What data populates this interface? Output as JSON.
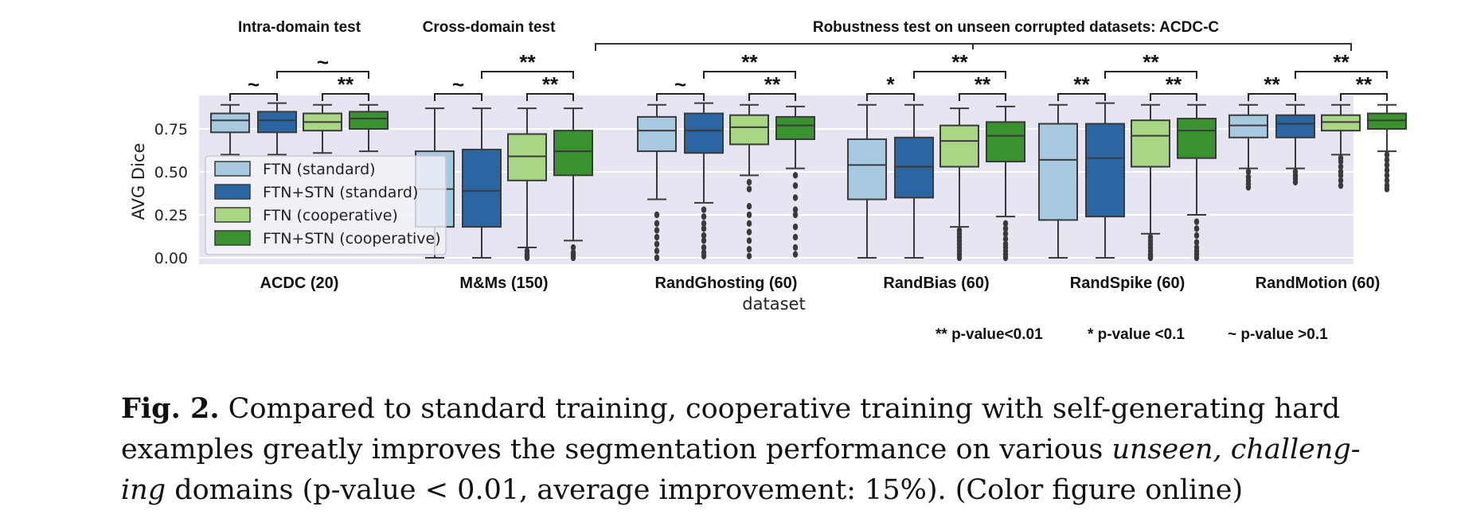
{
  "chart_data": {
    "type": "box",
    "xlabel": "dataset",
    "ylabel": "AVG Dice",
    "ylim": [
      0,
      0.9
    ],
    "yticks": [
      "0.00",
      "0.25",
      "0.50",
      "0.75"
    ],
    "grid": true,
    "legend_placement": "left",
    "colors": [
      "#a6c9e0",
      "#2b66a2",
      "#a9d684",
      "#3b9030"
    ],
    "series": [
      {
        "name": "FTN (standard)",
        "color": "#a6c9e0"
      },
      {
        "name": "FTN+STN (standard)",
        "color": "#2b66a2"
      },
      {
        "name": "FTN (cooperative)",
        "color": "#a9d684"
      },
      {
        "name": "FTN+STN (cooperative)",
        "color": "#3b9030"
      }
    ],
    "categories": [
      "ACDC (20)",
      "M&Ms (150)",
      "RandGhosting (60)",
      "RandBias (60)",
      "RandSpike (60)",
      "RandMotion (60)"
    ],
    "boxes": [
      [
        {
          "whislo": 0.6,
          "q1": 0.73,
          "med": 0.8,
          "q3": 0.84,
          "whishi": 0.89,
          "fliers": []
        },
        {
          "whislo": 0.6,
          "q1": 0.73,
          "med": 0.8,
          "q3": 0.85,
          "whishi": 0.9,
          "fliers": []
        },
        {
          "whislo": 0.61,
          "q1": 0.74,
          "med": 0.79,
          "q3": 0.84,
          "whishi": 0.89,
          "fliers": []
        },
        {
          "whislo": 0.62,
          "q1": 0.75,
          "med": 0.81,
          "q3": 0.85,
          "whishi": 0.89,
          "fliers": []
        }
      ],
      [
        {
          "whislo": 0.0,
          "q1": 0.18,
          "med": 0.4,
          "q3": 0.62,
          "whishi": 0.87,
          "fliers": []
        },
        {
          "whislo": 0.0,
          "q1": 0.18,
          "med": 0.39,
          "q3": 0.63,
          "whishi": 0.87,
          "fliers": []
        },
        {
          "whislo": 0.06,
          "q1": 0.45,
          "med": 0.59,
          "q3": 0.72,
          "whishi": 0.87,
          "fliers": [
            0.04,
            0.02,
            0.01,
            0.0
          ]
        },
        {
          "whislo": 0.1,
          "q1": 0.48,
          "med": 0.62,
          "q3": 0.74,
          "whishi": 0.87,
          "fliers": [
            0.06,
            0.03,
            0.02,
            0.01,
            0.0
          ]
        }
      ],
      [
        {
          "whislo": 0.34,
          "q1": 0.62,
          "med": 0.74,
          "q3": 0.82,
          "whishi": 0.89,
          "fliers": [
            0.25,
            0.2,
            0.16,
            0.12,
            0.08,
            0.04,
            0.0
          ]
        },
        {
          "whislo": 0.32,
          "q1": 0.61,
          "med": 0.74,
          "q3": 0.84,
          "whishi": 0.9,
          "fliers": [
            0.28,
            0.24,
            0.2,
            0.17,
            0.13,
            0.1,
            0.06,
            0.03,
            0.01
          ]
        },
        {
          "whislo": 0.48,
          "q1": 0.66,
          "med": 0.76,
          "q3": 0.83,
          "whishi": 0.89,
          "fliers": [
            0.44,
            0.4,
            0.3,
            0.25,
            0.2,
            0.15,
            0.1,
            0.05,
            0.01
          ]
        },
        {
          "whislo": 0.52,
          "q1": 0.69,
          "med": 0.77,
          "q3": 0.82,
          "whishi": 0.88,
          "fliers": [
            0.48,
            0.42,
            0.35,
            0.28,
            0.25,
            0.18,
            0.12,
            0.06,
            0.02
          ]
        }
      ],
      [
        {
          "whislo": 0.0,
          "q1": 0.34,
          "med": 0.54,
          "q3": 0.69,
          "whishi": 0.89,
          "fliers": []
        },
        {
          "whislo": 0.0,
          "q1": 0.35,
          "med": 0.53,
          "q3": 0.7,
          "whishi": 0.89,
          "fliers": []
        },
        {
          "whislo": 0.18,
          "q1": 0.53,
          "med": 0.68,
          "q3": 0.77,
          "whishi": 0.87,
          "fliers": [
            0.16,
            0.14,
            0.12,
            0.1,
            0.08,
            0.06,
            0.04,
            0.02,
            0.0
          ]
        },
        {
          "whislo": 0.24,
          "q1": 0.56,
          "med": 0.71,
          "q3": 0.79,
          "whishi": 0.88,
          "fliers": [
            0.2,
            0.17,
            0.14,
            0.11,
            0.08,
            0.06,
            0.04,
            0.02,
            0.0
          ]
        }
      ],
      [
        {
          "whislo": 0.0,
          "q1": 0.22,
          "med": 0.57,
          "q3": 0.78,
          "whishi": 0.89,
          "fliers": []
        },
        {
          "whislo": 0.0,
          "q1": 0.24,
          "med": 0.58,
          "q3": 0.78,
          "whishi": 0.9,
          "fliers": []
        },
        {
          "whislo": 0.14,
          "q1": 0.53,
          "med": 0.71,
          "q3": 0.8,
          "whishi": 0.89,
          "fliers": [
            0.12,
            0.1,
            0.08,
            0.06,
            0.04,
            0.02,
            0.01,
            0.0
          ]
        },
        {
          "whislo": 0.25,
          "q1": 0.58,
          "med": 0.74,
          "q3": 0.81,
          "whishi": 0.89,
          "fliers": [
            0.21,
            0.17,
            0.13,
            0.09,
            0.06,
            0.04,
            0.02,
            0.0
          ]
        }
      ],
      [
        {
          "whislo": 0.52,
          "q1": 0.7,
          "med": 0.77,
          "q3": 0.83,
          "whishi": 0.89,
          "fliers": [
            0.5,
            0.47,
            0.45,
            0.43,
            0.41
          ]
        },
        {
          "whislo": 0.52,
          "q1": 0.7,
          "med": 0.78,
          "q3": 0.83,
          "whishi": 0.89,
          "fliers": [
            0.5,
            0.48,
            0.46,
            0.44
          ]
        },
        {
          "whislo": 0.6,
          "q1": 0.74,
          "med": 0.79,
          "q3": 0.83,
          "whishi": 0.89,
          "fliers": [
            0.58,
            0.56,
            0.53,
            0.5,
            0.48,
            0.45,
            0.42
          ]
        },
        {
          "whislo": 0.62,
          "q1": 0.75,
          "med": 0.8,
          "q3": 0.84,
          "whishi": 0.89,
          "fliers": [
            0.6,
            0.57,
            0.54,
            0.51,
            0.48,
            0.45,
            0.42,
            0.4
          ]
        }
      ]
    ],
    "significance": [
      {
        "pair1": "~",
        "pair1_color": "#6fb43a",
        "pair2": "**",
        "pair2_color": "#6fb43a",
        "pair3": "~",
        "pair3_color": "#3a66c4"
      },
      {
        "pair1": "~",
        "pair1_color": "#6fb43a",
        "pair2": "**",
        "pair2_color": "#6fb43a",
        "pair3": "**",
        "pair3_color": "#3a66c4"
      },
      {
        "pair1": "~",
        "pair1_color": "#6fb43a",
        "pair2": "**",
        "pair2_color": "#6fb43a",
        "pair3": "**",
        "pair3_color": "#3a66c4"
      },
      {
        "pair1": "*",
        "pair1_color": "#6fb43a",
        "pair2": "**",
        "pair2_color": "#6fb43a",
        "pair3": "**",
        "pair3_color": "#3a66c4"
      },
      {
        "pair1": "**",
        "pair1_color": "#6fb43a",
        "pair2": "**",
        "pair2_color": "#6fb43a",
        "pair3": "**",
        "pair3_color": "#3a66c4"
      },
      {
        "pair1": "**",
        "pair1_color": "#6fb43a",
        "pair2": "**",
        "pair2_color": "#6fb43a",
        "pair3": "**",
        "pair3_color": "#3a66c4"
      }
    ],
    "section_headers": [
      "Intra-domain test",
      "Cross-domain test",
      "Robustness test on unseen corrupted datasets: ACDC-C"
    ],
    "pvalue_legend": [
      "** p-value<0.01",
      "* p-value <0.1",
      "~ p-value >0.1"
    ],
    "first_significance_mark": "**"
  },
  "caption": {
    "label": "Fig. 2.",
    "line1": "Compared to standard training, cooperative training with self-generating hard",
    "line2_a": "examples greatly improves the segmentation performance on various ",
    "line2_em": "unseen, challeng-",
    "line3_em": "ing",
    "line3_b": " domains (p-value < 0.01, average improvement: 15%). (Color figure online)"
  }
}
